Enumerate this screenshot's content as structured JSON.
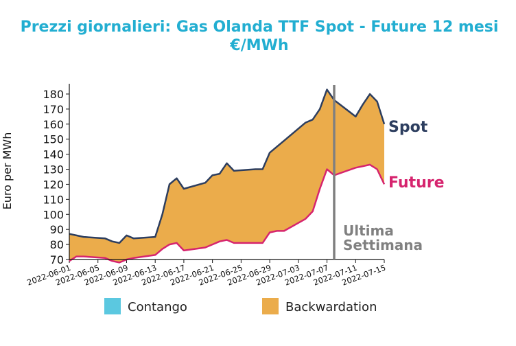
{
  "chart_data": {
    "type": "area",
    "title_line1": "Prezzi giornalieri: Gas Olanda TTF Spot - Future 12 mesi",
    "title_line2": "€/MWh",
    "ylabel": "Euro per MWh",
    "ylim": [
      70,
      185
    ],
    "yticks": [
      70,
      80,
      90,
      100,
      110,
      120,
      130,
      140,
      150,
      160,
      170,
      180
    ],
    "x_start": "2022-06-01",
    "x_end": "2022-07-15",
    "xticks": [
      "2022-06-01",
      "2022-06-05",
      "2022-06-09",
      "2022-06-13",
      "2022-06-17",
      "2022-06-21",
      "2022-06-25",
      "2022-06-29",
      "2022-07-03",
      "2022-07-07",
      "2022-07-11",
      "2022-07-15"
    ],
    "x": [
      "2022-06-01",
      "2022-06-02",
      "2022-06-03",
      "2022-06-06",
      "2022-06-07",
      "2022-06-08",
      "2022-06-09",
      "2022-06-10",
      "2022-06-13",
      "2022-06-14",
      "2022-06-15",
      "2022-06-16",
      "2022-06-17",
      "2022-06-20",
      "2022-06-21",
      "2022-06-22",
      "2022-06-23",
      "2022-06-24",
      "2022-06-27",
      "2022-06-28",
      "2022-06-29",
      "2022-06-30",
      "2022-07-01",
      "2022-07-04",
      "2022-07-05",
      "2022-07-06",
      "2022-07-07",
      "2022-07-08",
      "2022-07-11",
      "2022-07-12",
      "2022-07-13",
      "2022-07-14",
      "2022-07-15"
    ],
    "series": [
      {
        "name": "Spot",
        "color": "#2d3e5f",
        "values": [
          87,
          86,
          85,
          84,
          82,
          81,
          86,
          84,
          85,
          100,
          120,
          124,
          117,
          121,
          126,
          127,
          134,
          129,
          130,
          130,
          141,
          145,
          149,
          161,
          163,
          170,
          183,
          176,
          165,
          173,
          180,
          175,
          160
        ]
      },
      {
        "name": "Future",
        "color": "#d6246e",
        "values": [
          69,
          72,
          72,
          71,
          69,
          68,
          70,
          71,
          73,
          77,
          80,
          81,
          76,
          78,
          80,
          82,
          83,
          81,
          81,
          81,
          88,
          89,
          89,
          97,
          102,
          117,
          130,
          126,
          131,
          132,
          133,
          130,
          120
        ]
      }
    ],
    "vline": {
      "date": "2022-07-08",
      "color": "#808080"
    },
    "annotation": [
      "Ultima",
      "Settimana"
    ],
    "legend": [
      {
        "name": "Contango",
        "color": "#5bc8e0"
      },
      {
        "name": "Backwardation",
        "color": "#ebac4b"
      }
    ],
    "legend_position": "bottom"
  }
}
